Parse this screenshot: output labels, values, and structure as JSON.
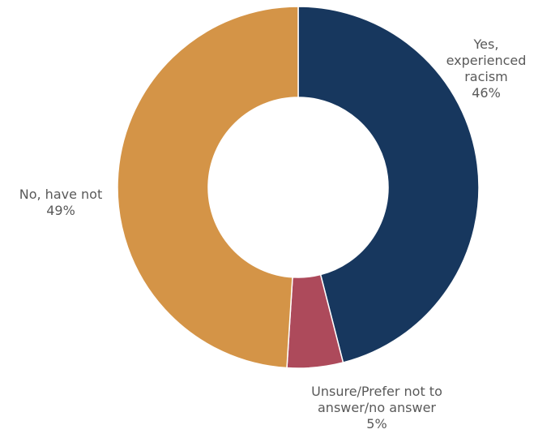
{
  "chart_data": {
    "type": "pie",
    "title": "",
    "donut": true,
    "start_angle_deg": 0,
    "direction": "clockwise",
    "slices": [
      {
        "label": [
          "Yes,",
          "experienced",
          "racism"
        ],
        "value": 46,
        "value_label": "46%",
        "color": "#17375e"
      },
      {
        "label": [
          "Unsure/Prefer not to",
          "answer/no answer"
        ],
        "value": 5,
        "value_label": "5%",
        "color": "#ad4a5b"
      },
      {
        "label": [
          "No, have not"
        ],
        "value": 49,
        "value_label": "49%",
        "color": "#d49447"
      }
    ]
  }
}
